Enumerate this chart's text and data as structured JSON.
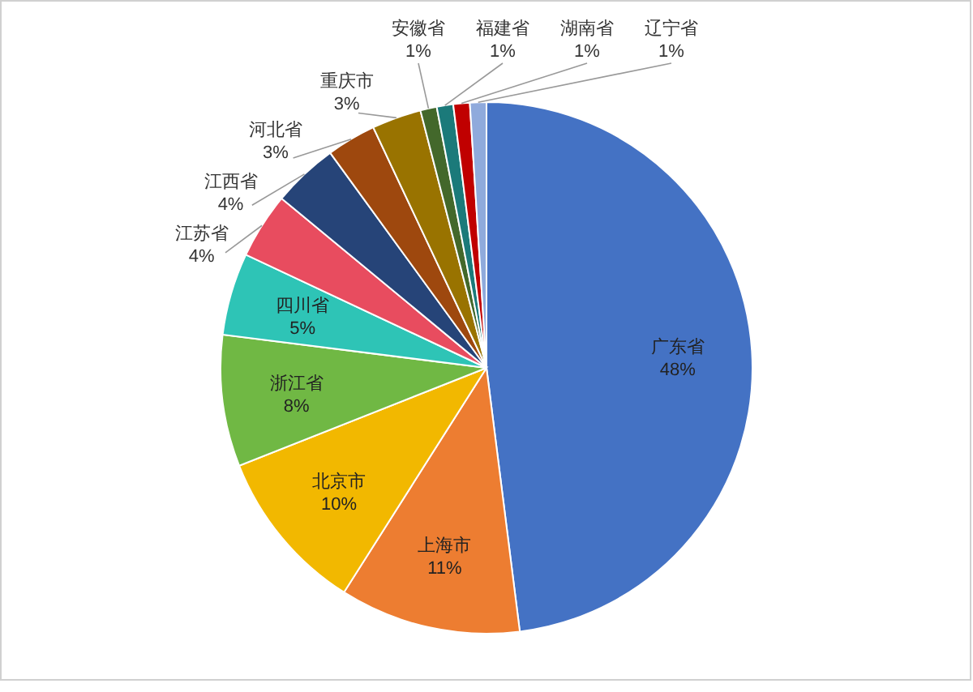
{
  "chart_data": {
    "type": "pie",
    "categories": [
      "广东省",
      "上海市",
      "北京市",
      "浙江省",
      "四川省",
      "江苏省",
      "江西省",
      "河北省",
      "重庆市",
      "安徽省",
      "福建省",
      "湖南省",
      "辽宁省"
    ],
    "values": [
      48,
      11,
      10,
      8,
      5,
      4,
      4,
      3,
      3,
      1,
      1,
      1,
      1
    ],
    "colors": [
      "#4472c4",
      "#ed7d31",
      "#f2b800",
      "#70b844",
      "#2ec4b6",
      "#e84c5f",
      "#264478",
      "#9e480e",
      "#997300",
      "#43682b",
      "#1b7a7a",
      "#c00000",
      "#8faadc"
    ],
    "value_labels": [
      "48%",
      "11%",
      "10%",
      "8%",
      "5%",
      "4%",
      "4%",
      "3%",
      "3%",
      "1%",
      "1%",
      "1%",
      "1%"
    ]
  }
}
